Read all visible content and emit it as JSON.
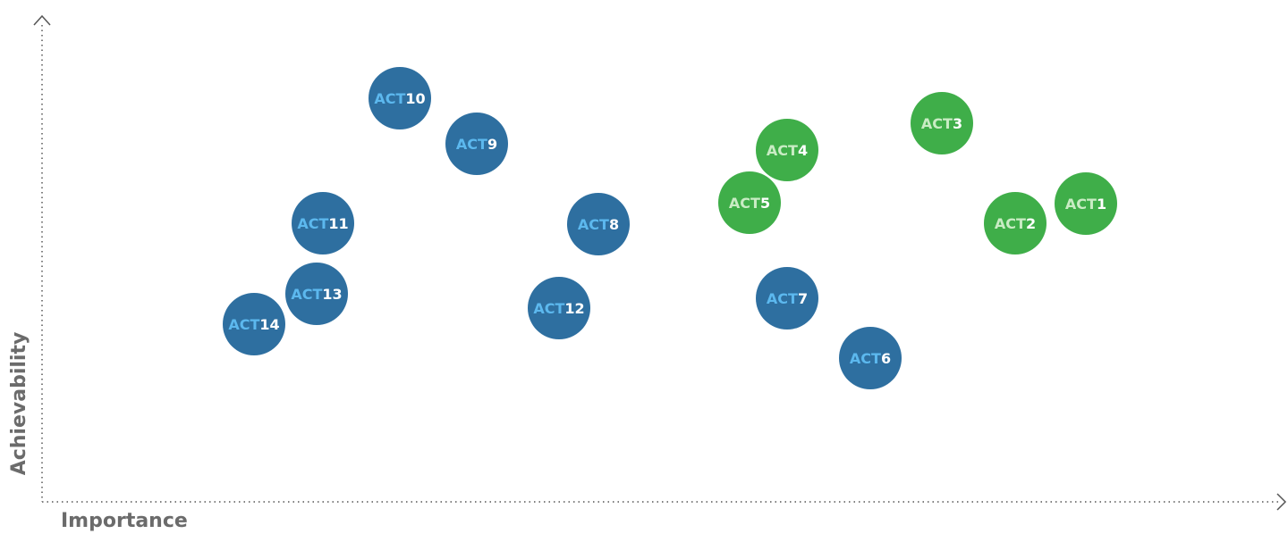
{
  "axes": {
    "x_label": "Importance",
    "y_label": "Achievability"
  },
  "nodes": [
    {
      "prefix": "ACT",
      "number": "1",
      "color": "#3fae49"
    },
    {
      "prefix": "ACT",
      "number": "2",
      "color": "#3fae49"
    },
    {
      "prefix": "ACT",
      "number": "3",
      "color": "#3fae49"
    },
    {
      "prefix": "ACT",
      "number": "4",
      "color": "#3fae49"
    },
    {
      "prefix": "ACT",
      "number": "5",
      "color": "#3fae49"
    },
    {
      "prefix": "ACT",
      "number": "6",
      "color": "#2e6fa0"
    },
    {
      "prefix": "ACT",
      "number": "7",
      "color": "#2e6fa0"
    },
    {
      "prefix": "ACT",
      "number": "8",
      "color": "#2e6fa0"
    },
    {
      "prefix": "ACT",
      "number": "9",
      "color": "#2e6fa0"
    },
    {
      "prefix": "ACT",
      "number": "10",
      "color": "#2e6fa0"
    },
    {
      "prefix": "ACT",
      "number": "11",
      "color": "#2e6fa0"
    },
    {
      "prefix": "ACT",
      "number": "12",
      "color": "#2e6fa0"
    },
    {
      "prefix": "ACT",
      "number": "13",
      "color": "#2e6fa0"
    },
    {
      "prefix": "ACT",
      "number": "14",
      "color": "#2e6fa0"
    }
  ]
}
